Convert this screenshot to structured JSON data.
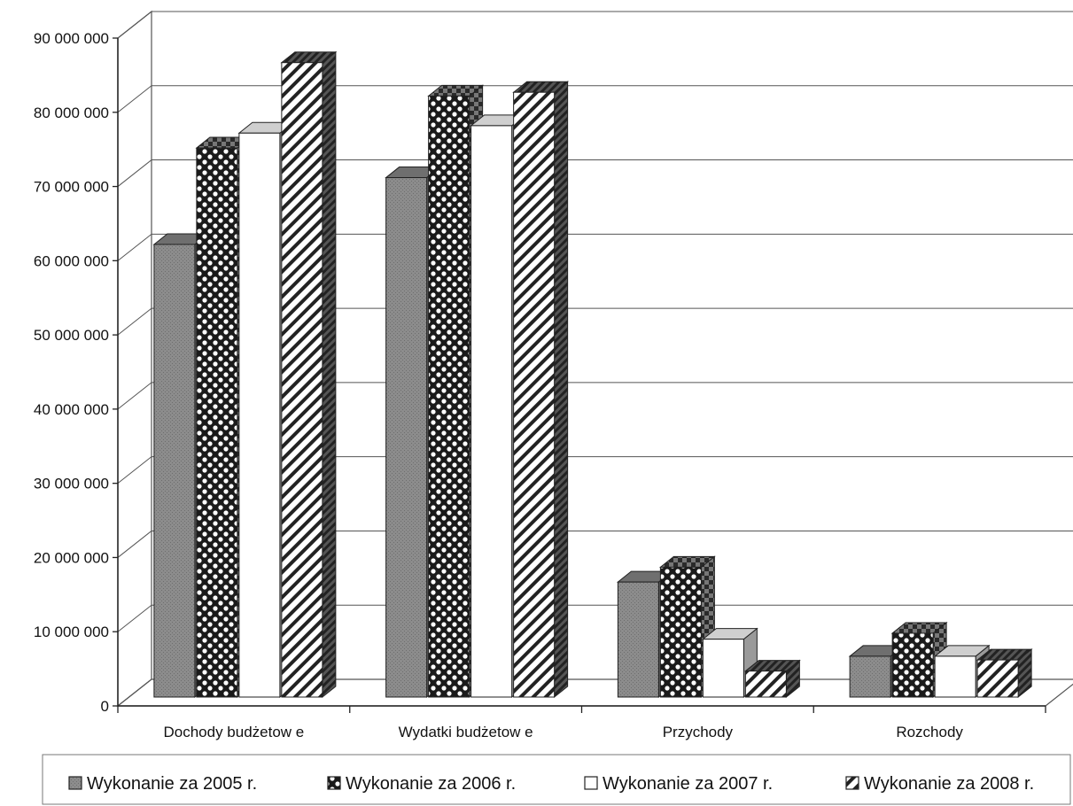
{
  "chart_data": {
    "type": "bar",
    "style": "3d-clustered-column",
    "categories": [
      "Dochody budżetow e",
      "Wydatki budżetow e",
      "Przychody",
      "Rozchody"
    ],
    "series": [
      {
        "name": "Wykonanie za 2005 r.",
        "values": [
          61000000,
          70000000,
          15500000,
          5500000
        ],
        "pattern": "dots-gray"
      },
      {
        "name": "Wykonanie za 2006 r.",
        "values": [
          74000000,
          81000000,
          17500000,
          8600000
        ],
        "pattern": "checker"
      },
      {
        "name": "Wykonanie za 2007 r.",
        "values": [
          76000000,
          77000000,
          7800000,
          5500000
        ],
        "pattern": "white"
      },
      {
        "name": "Wykonanie za 2008 r.",
        "values": [
          85500000,
          81500000,
          3500000,
          5000000
        ],
        "pattern": "diagonal"
      }
    ],
    "ylim": [
      0,
      90000000
    ],
    "yticks": [
      0,
      10000000,
      20000000,
      30000000,
      40000000,
      50000000,
      60000000,
      70000000,
      80000000,
      90000000
    ],
    "ytick_labels": [
      "0",
      "10 000 000",
      "20 000 000",
      "30 000 000",
      "40 000 000",
      "50 000 000",
      "60 000 000",
      "70 000 000",
      "80 000 000",
      "90 000 000"
    ],
    "grid": true,
    "legend_position": "bottom",
    "colors": {
      "series_2005": "#8c8c8c",
      "checker_dark": "#1a1a1a",
      "white": "#ffffff",
      "stripe": "#222222"
    }
  }
}
